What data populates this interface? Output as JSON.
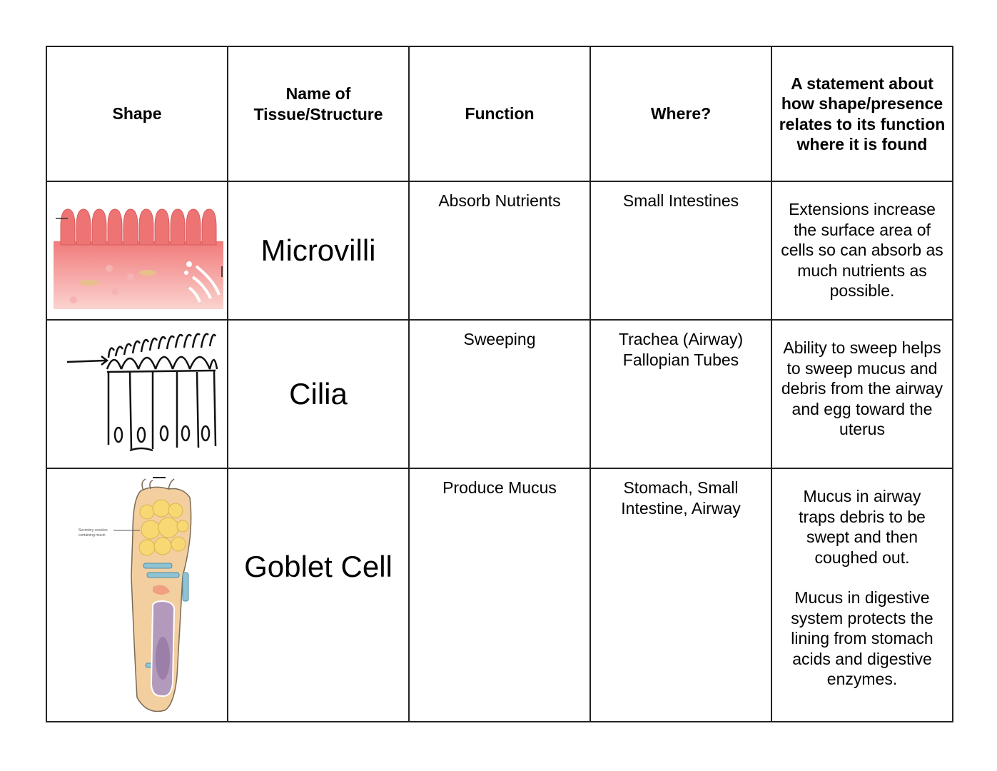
{
  "table": {
    "headers": [
      "Shape",
      "Name of Tissue/Structure",
      "Function",
      "Where?",
      "A statement about how shape/presence relates to its function where it is found"
    ],
    "rows": [
      {
        "shape_image": "microvilli-diagram",
        "name": "Microvilli",
        "function": "Absorb Nutrients",
        "where": "Small Intestines",
        "statement": [
          "Extensions increase the surface area of cells so can absorb as much nutrients as possible."
        ]
      },
      {
        "shape_image": "cilia-drawing",
        "name": "Cilia",
        "function": "Sweeping",
        "where": "Trachea (Airway) Fallopian Tubes",
        "statement": [
          "Ability to sweep helps to sweep mucus and debris from the airway and egg toward the uterus"
        ]
      },
      {
        "shape_image": "goblet-cell-diagram",
        "name": "Goblet Cell",
        "function": "Produce Mucus",
        "where": "Stomach, Small Intestine, Airway",
        "statement": [
          "Mucus in airway traps debris to be swept and then coughed out.",
          "Mucus in digestive system protects the lining from stomach acids and digestive enzymes."
        ],
        "image_label": "Secretory vesicles containing mucin"
      }
    ]
  }
}
